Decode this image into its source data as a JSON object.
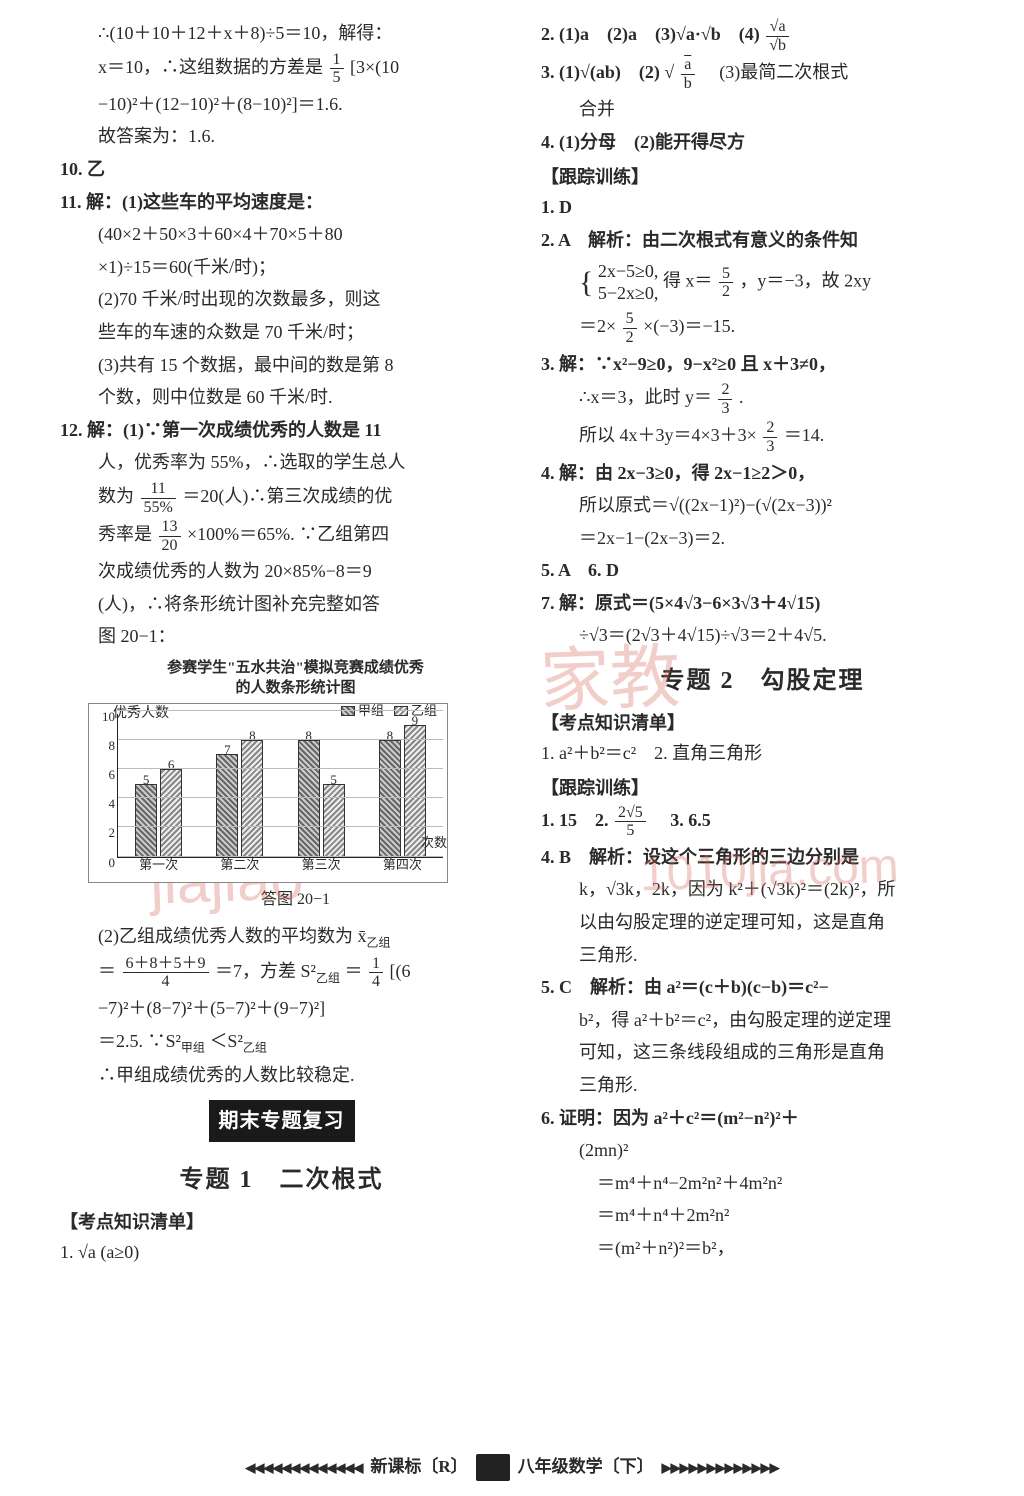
{
  "left": {
    "p1a": "∴(10＋10＋12＋x＋8)÷5＝10，解得：",
    "p1b_pre": "x＝10，∴这组数据的方差是",
    "p1b_frac_n": "1",
    "p1b_frac_d": "5",
    "p1b_post": "[3×(10",
    "p1c": "−10)²＋(12−10)²＋(8−10)²]＝1.6.",
    "p1d": "故答案为：1.6.",
    "q10": "10. 乙",
    "q11a": "11. 解：(1)这些车的平均速度是：",
    "q11b": "(40×2＋50×3＋60×4＋70×5＋80",
    "q11c": "×1)÷15＝60(千米/时)；",
    "q11d": "(2)70 千米/时出现的次数最多，则这",
    "q11e": "些车的车速的众数是 70 千米/时；",
    "q11f": "(3)共有 15 个数据，最中间的数是第 8",
    "q11g": "个数，则中位数是 60 千米/时.",
    "q12a": "12. 解：(1)∵第一次成绩优秀的人数是 11",
    "q12b": "人，优秀率为 55%，∴选取的学生总人",
    "q12c_pre": "数为",
    "q12c_n": "11",
    "q12c_d": "55%",
    "q12c_post": "＝20(人)∴第三次成绩的优",
    "q12d_pre": "秀率是",
    "q12d_n": "13",
    "q12d_d": "20",
    "q12d_post": "×100%＝65%. ∵乙组第四",
    "q12e": "次成绩优秀的人数为 20×85%−8＝9",
    "q12f": "(人)，∴将条形统计图补充完整如答",
    "q12g": "图 20−1：",
    "chart": {
      "title1": "参赛学生\"五水共治\"模拟竞赛成绩优秀",
      "title2": "的人数条形统计图",
      "yaxis_label": "优秀人数",
      "xaxis_label": "次数",
      "ylim": [
        0,
        10
      ],
      "ytick_step": 2,
      "yticks": [
        "0",
        "2",
        "4",
        "6",
        "8",
        "10"
      ],
      "legend": [
        "甲组",
        "乙组"
      ],
      "legend_colors": [
        "#888888",
        "#bbbbbb"
      ],
      "categories": [
        "第一次",
        "第二次",
        "第三次",
        "第四次"
      ],
      "series_a": [
        5,
        7,
        8,
        8
      ],
      "series_b": [
        6,
        8,
        5,
        9
      ],
      "bar_border": "#333333",
      "grid_color": "#bbbbbb",
      "caption": "答图 20−1"
    },
    "q12h_pre": "(2)乙组成绩优秀人数的平均数为 x̄",
    "q12h_sub": "乙组",
    "q12i_pre": "＝",
    "q12i_n": "6＋8＋5＋9",
    "q12i_d": "4",
    "q12i_mid": "＝7，方差 S²",
    "q12i_sub": "乙组",
    "q12i_eq": "＝",
    "q12i_n2": "1",
    "q12i_d2": "4",
    "q12i_post": "[(6",
    "q12j": "−7)²＋(8−7)²＋(5−7)²＋(9−7)²]",
    "q12k_pre": "＝2.5. ∵S²",
    "q12k_s1": "甲组",
    "q12k_mid": "＜S²",
    "q12k_s2": "乙组",
    "q12l": "∴甲组成绩优秀的人数比较稳定.",
    "review_box": "期末专题复习",
    "topic1_title": "专题 1　二次根式",
    "kp_label": "【考点知识清单】",
    "kp1": "1. √a (a≥0)"
  },
  "right": {
    "r2": "2. (1)a　(2)a　(3)√a·√b　(4)",
    "r2_frac_n": "√a",
    "r2_frac_d": "√b",
    "r3a": "3. (1)√(ab)　(2)",
    "r3_sqrt": "√",
    "r3_n": "a",
    "r3_d": "b",
    "r3b": "　(3)最简二次根式",
    "r3c": "合并",
    "r4": "4. (1)分母　(2)能开得尽方",
    "track": "【跟踪训练】",
    "t1": "1. D",
    "t2a": "2. A　解析：由二次根式有意义的条件知",
    "t2b_l1": "2x−5≥0,",
    "t2b_l2": "5−2x≥0,",
    "t2b_mid": "得 x＝",
    "t2b_n": "5",
    "t2b_d": "2",
    "t2b_post": "，y＝−3，故 2xy",
    "t2c_pre": "＝2×",
    "t2c_n": "5",
    "t2c_d": "2",
    "t2c_post": "×(−3)＝−15.",
    "t3a": "3. 解：∵x²−9≥0，9−x²≥0 且 x＋3≠0，",
    "t3b_pre": "∴x＝3，此时 y＝",
    "t3b_n": "2",
    "t3b_d": "3",
    "t3b_post": ".",
    "t3c_pre": "所以 4x＋3y＝4×3＋3×",
    "t3c_n": "2",
    "t3c_d": "3",
    "t3c_post": "＝14.",
    "t4a": "4. 解：由 2x−3≥0，得 2x−1≥2＞0，",
    "t4b": "所以原式＝√((2x−1)²)−(√(2x−3))²",
    "t4c": "＝2x−1−(2x−3)＝2.",
    "t56": "5. A　6. D",
    "t7a": "7. 解：原式＝(5×4√3−6×3√3＋4√15)",
    "t7b": "÷√3＝(2√3＋4√15)÷√3＝2＋4√5.",
    "topic2_title": "专题 2　勾股定理",
    "kp2_label": "【考点知识清单】",
    "kp2_1": "1. a²＋b²＝c²　2. 直角三角形",
    "track2": "【跟踪训练】",
    "tt1_pre": "1. 15　2.",
    "tt1_n": "2√5",
    "tt1_d": "5",
    "tt1_post": "　3. 6.5",
    "tt4a": "4. B　解析：设这个三角形的三边分别是",
    "tt4b": "k，√3k，2k，因为 k²＋(√3k)²＝(2k)²，所",
    "tt4c": "以由勾股定理的逆定理可知，这是直角",
    "tt4d": "三角形.",
    "tt5a": "5. C　解析：由 a²＝(c＋b)(c−b)＝c²−",
    "tt5b": "b²，得 a²＋b²＝c²，由勾股定理的逆定理",
    "tt5c": "可知，这三条线段组成的三角形是直角",
    "tt5d": "三角形.",
    "tt6a": "6. 证明：因为 a²＋c²＝(m²−n²)²＋",
    "tt6b": "(2mn)²",
    "tt6c": "＝m⁴＋n⁴−2m²n²＋4m²n²",
    "tt6d": "＝m⁴＋n⁴＋2m²n²",
    "tt6e": "＝(m²＋n²)²＝b²，"
  },
  "footer": {
    "left": "新课标〔R〕",
    "right": "八年级数学〔下〕"
  },
  "watermark": {
    "wm1": "jiajiao",
    "wm2": "家教",
    "wm3": "1010jia.com"
  }
}
